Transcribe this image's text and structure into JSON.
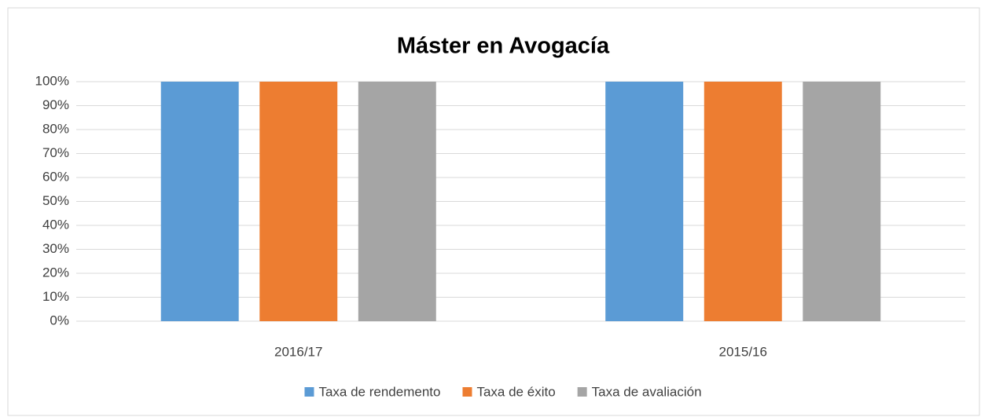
{
  "chart_data": {
    "type": "bar",
    "title": "Máster en Avogacía",
    "categories": [
      "2016/17",
      "2015/16"
    ],
    "series": [
      {
        "name": "Taxa de rendemento",
        "color": "#5b9bd5",
        "values": [
          100,
          100
        ]
      },
      {
        "name": "Taxa de éxito",
        "color": "#ed7d31",
        "values": [
          100,
          100
        ]
      },
      {
        "name": "Taxa de avaliación",
        "color": "#a5a5a5",
        "values": [
          100,
          100
        ]
      }
    ],
    "ylim": [
      0,
      100
    ],
    "yticks": [
      {
        "value": 0,
        "label": "0%"
      },
      {
        "value": 10,
        "label": "10%"
      },
      {
        "value": 20,
        "label": "20%"
      },
      {
        "value": 30,
        "label": "30%"
      },
      {
        "value": 40,
        "label": "40%"
      },
      {
        "value": 50,
        "label": "50%"
      },
      {
        "value": 60,
        "label": "60%"
      },
      {
        "value": 70,
        "label": "70%"
      },
      {
        "value": 80,
        "label": "80%"
      },
      {
        "value": 90,
        "label": "90%"
      },
      {
        "value": 100,
        "label": "100%"
      }
    ],
    "grid": true,
    "legend": "bottom"
  }
}
